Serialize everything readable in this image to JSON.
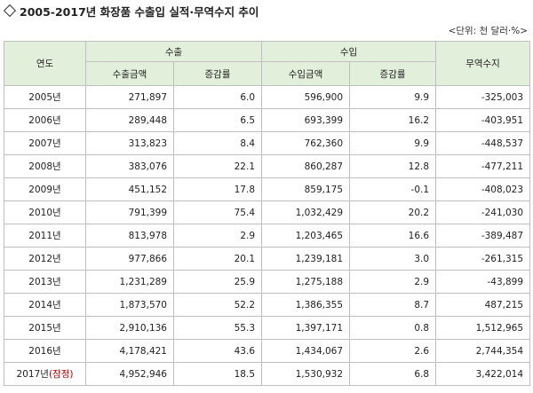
{
  "title": "2005-2017년 화장품 수출입 실적·무역수지 추이",
  "unit": "<단위: 천 달러·%>",
  "headers": {
    "year": "연도",
    "export": "수출",
    "import": "수입",
    "balance": "무역수지",
    "export_amount": "수출금액",
    "import_amount": "수입금액",
    "growth": "증감률"
  },
  "rows": [
    {
      "year": "2005년",
      "exp": "271,897",
      "exp_g": "6.0",
      "imp": "596,900",
      "imp_g": "9.9",
      "bal": "-325,003"
    },
    {
      "year": "2006년",
      "exp": "289,448",
      "exp_g": "6.5",
      "imp": "693,399",
      "imp_g": "16.2",
      "bal": "-403,951"
    },
    {
      "year": "2007년",
      "exp": "313,823",
      "exp_g": "8.4",
      "imp": "762,360",
      "imp_g": "9.9",
      "bal": "-448,537"
    },
    {
      "year": "2008년",
      "exp": "383,076",
      "exp_g": "22.1",
      "imp": "860,287",
      "imp_g": "12.8",
      "bal": "-477,211"
    },
    {
      "year": "2009년",
      "exp": "451,152",
      "exp_g": "17.8",
      "imp": "859,175",
      "imp_g": "-0.1",
      "bal": "-408,023"
    },
    {
      "year": "2010년",
      "exp": "791,399",
      "exp_g": "75.4",
      "imp": "1,032,429",
      "imp_g": "20.2",
      "bal": "-241,030"
    },
    {
      "year": "2011년",
      "exp": "813,978",
      "exp_g": "2.9",
      "imp": "1,203,465",
      "imp_g": "16.6",
      "bal": "-389,487"
    },
    {
      "year": "2012년",
      "exp": "977,866",
      "exp_g": "20.1",
      "imp": "1,239,181",
      "imp_g": "3.0",
      "bal": "-261,315"
    },
    {
      "year": "2013년",
      "exp": "1,231,289",
      "exp_g": "25.9",
      "imp": "1,275,188",
      "imp_g": "2.9",
      "bal": "-43,899"
    },
    {
      "year": "2014년",
      "exp": "1,873,570",
      "exp_g": "52.2",
      "imp": "1,386,355",
      "imp_g": "8.7",
      "bal": "487,215"
    },
    {
      "year": "2015년",
      "exp": "2,910,136",
      "exp_g": "55.3",
      "imp": "1,397,171",
      "imp_g": "0.8",
      "bal": "1,512,965"
    },
    {
      "year": "2016년",
      "exp": "4,178,421",
      "exp_g": "43.6",
      "imp": "1,434,067",
      "imp_g": "2.6",
      "bal": "2,744,354"
    }
  ],
  "last_row": {
    "year": "2017년",
    "note": "(잠정)",
    "exp": "4,952,946",
    "exp_g": "18.5",
    "imp": "1,530,932",
    "imp_g": "6.8",
    "bal": "3,422,014"
  },
  "colors": {
    "header_bg": "#e2efda",
    "border": "#bfbfbf",
    "note": "#c00000"
  }
}
